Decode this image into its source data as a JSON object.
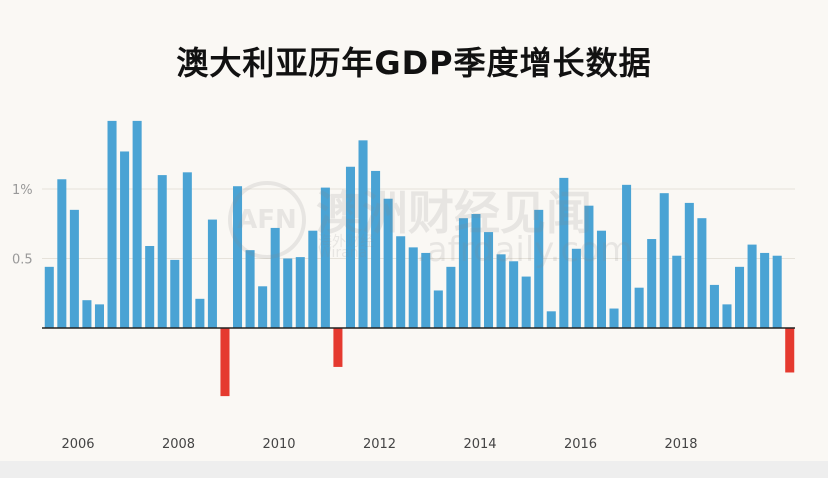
{
  "chart_data": {
    "type": "bar",
    "title": "澳大利亚历年GDP季度增长数据",
    "ylabel": "",
    "xlabel": "",
    "ylim": [
      -0.55,
      1.5
    ],
    "y_ticks": [
      {
        "value": 1,
        "label": "1%"
      },
      {
        "value": 0.5,
        "label": "0.5"
      }
    ],
    "x_tick_labels": [
      "2006",
      "2008",
      "2010",
      "2012",
      "2014",
      "2016",
      "2018"
    ],
    "grid": true,
    "positive_color": "#4aa3d4",
    "negative_color": "#e53a2f",
    "values": [
      0.44,
      1.07,
      0.85,
      0.2,
      0.17,
      1.49,
      1.27,
      1.49,
      0.59,
      1.1,
      0.49,
      1.12,
      0.21,
      0.78,
      -0.49,
      1.02,
      0.56,
      0.3,
      0.72,
      0.5,
      0.51,
      0.7,
      1.01,
      -0.28,
      1.16,
      1.35,
      1.13,
      0.93,
      0.66,
      0.58,
      0.54,
      0.27,
      0.44,
      0.79,
      0.82,
      0.69,
      0.53,
      0.48,
      0.37,
      0.85,
      0.12,
      1.08,
      0.57,
      0.88,
      0.7,
      0.14,
      1.03,
      0.29,
      0.64,
      0.97,
      0.52,
      0.9,
      0.79,
      0.31,
      0.17,
      0.44,
      0.6,
      0.54,
      0.52,
      -0.32
    ]
  },
  "watermark": {
    "logo": "AFN",
    "title": "澳洲财经见闻",
    "subtitle_cn": "海外财经",
    "subtitle_en": "Wirana",
    "url": ".afrdaily.com"
  }
}
